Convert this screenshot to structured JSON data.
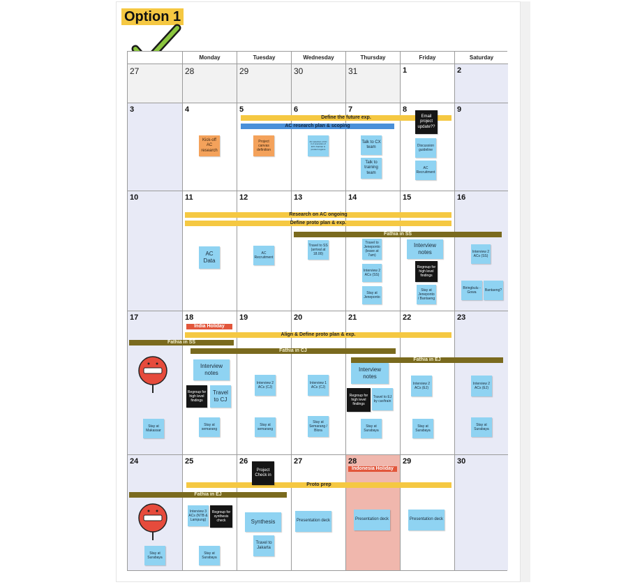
{
  "title": "Option 1",
  "colors": {
    "yellow": "#f5c842",
    "blue": "#4a90d9",
    "olive": "#7a6a1e",
    "red": "#e2563b",
    "sticky": "#8fd3f2",
    "orange_sticky": "#f4a25b",
    "weekend": "#e8eaf6",
    "holiday": "#f0b7ad"
  },
  "icons": {
    "check": "check-mark-icon",
    "stop": "stop-sign-icon"
  },
  "weekdays": [
    "Monday",
    "Tuesday",
    "Wednesday",
    "Thursday",
    "Friday",
    "Saturday"
  ],
  "days": {
    "d27": "27",
    "d28": "28",
    "d29": "29",
    "d30": "30",
    "d31": "31",
    "d1": "1",
    "d2": "2",
    "d3": "3",
    "d4": "4",
    "d5": "5",
    "d6": "6",
    "d7": "7",
    "d8": "8",
    "d9": "9",
    "d10": "10",
    "d11": "11",
    "d12": "12",
    "d13": "13",
    "d14": "14",
    "d15": "15",
    "d16": "16",
    "d17": "17",
    "d18": "18",
    "d19": "19",
    "d20": "20",
    "d21": "21",
    "d22": "22",
    "d23": "23",
    "d24": "24",
    "d25": "25",
    "d26": "26",
    "d27b": "27",
    "d28b": "28",
    "d29b": "29",
    "d30b": "30"
  },
  "bars": {
    "define_future": "Define the future exp.",
    "ac_research_plan": "AC research plan & scoping",
    "research_ongoing": "Research on AC ongoing",
    "define_proto": "Define proto plan & exp.",
    "fathia_ss_w3": "Fathia in SS",
    "india_holiday": "India Holiday",
    "align_define": "Align & Define proto plan & exp.",
    "fathia_ss_w4": "Fathia in SS",
    "fathia_cj": "Fathia in CJ",
    "fathia_ej_w4": "Fathia in EJ",
    "indonesia_holiday": "Indonesia Holiday",
    "proto_prep": "Proto prep",
    "fathia_ej_w5": "Fathia in EJ"
  },
  "notes": {
    "kickoff": "Kick-off AC research",
    "project_canvas": "Project canvas definition",
    "ac_selection": "AC selection of AC in 2 scenarios of EV's Kanban & product regions",
    "talk_cx": "Talk to CX team",
    "talk_training": "Talk to training team",
    "email_update": "Email project update??",
    "discussion_guideline": "Discussion guideline",
    "ac_recruitment_w2": "AC Recruitment",
    "ac_data": "AC Data",
    "ac_recruitment_w3": "AC Recruitment",
    "travel_ss": "Travel to SS (arrival at 18.00)",
    "travel_jeneponto": "Travel to Jeneponto (leave at 7am)",
    "interview_2ac_ss_thu": "Interview 2 ACs (SS)",
    "stay_jeneponto": "Stay at Jeneponto",
    "interview_notes_w3": "Interview notes",
    "regroup_w3": "Regroup for high level findings",
    "stay_jeneponto_bantaeng": "Stay at Jeneponto / Bantaeng",
    "interview_2ac_ss_sat": "Interview 2 ACs (SS)",
    "biringbulu": "Biringbulu - Gowa",
    "bantaeng": "Bantaeng?",
    "interview_notes_mon": "Interview notes",
    "regroup_mon": "Regroup for high level findings",
    "travel_cj": "Travel to CJ",
    "stay_makassar": "Stay at Makassar",
    "stay_semarang_mon": "Stay at semarang",
    "interview_2ac_cj": "Interview 2 ACs (CJ)",
    "stay_semarang_tue": "Stay at semarang",
    "interview_1ac_cj": "Interview 1 ACs (CJ)",
    "stay_semarang_blora": "Stay at Semarang / Blora",
    "interview_notes_thu": "Interview notes",
    "regroup_thu": "Regroup for high level findings",
    "travel_ej": "Travel to EJ by car/train",
    "stay_surabaya_thu": "Stay at Surabaya",
    "interview_2ac_ej_fri": "Interview 2 ACs (EJ)",
    "stay_surabaya_fri": "Stay at Surabaya",
    "interview_2ac_ej_sat": "Interview 2 ACs (EJ)",
    "stay_surabaya_sat": "Stay at Surabaya",
    "project_checkin": "Project Check in",
    "interview_3ac_ntb": "Interview 3 ACs (NTB & Lampung)",
    "regroup_synthesis": "Regroup for synthesis check",
    "synthesis": "Synthesis",
    "travel_jakarta": "Travel to Jakarta",
    "presentation_wed": "Presentation deck",
    "presentation_thu": "Presentation deck",
    "presentation_fri": "Presentation deck",
    "stay_surabaya_w5sun": "Stay at Surabaya",
    "stay_surabaya_w5mon": "Stay at Surabaya"
  }
}
